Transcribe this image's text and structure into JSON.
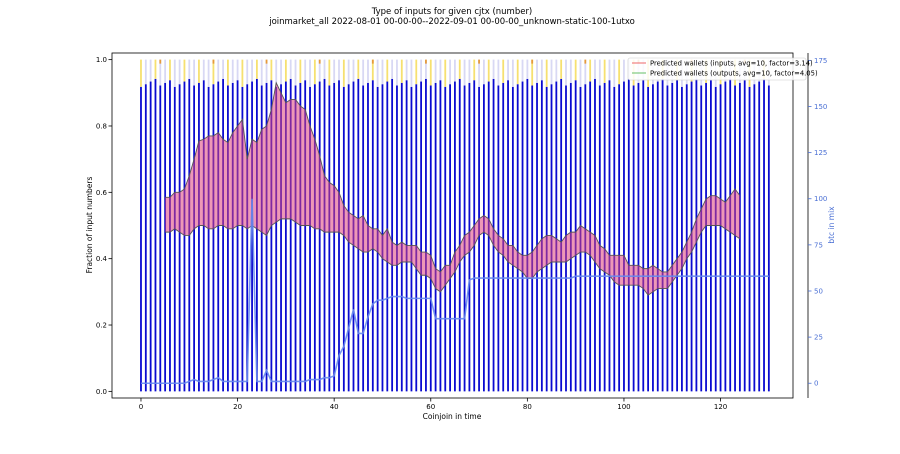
{
  "chart_data": {
    "type": "bar",
    "title": "Type of inputs for given cjtx (number)",
    "subtitle": "joinmarket_all 2022-08-01 00-00-00--2022-09-01 00-00-00_unknown-static-100-1utxo",
    "xlabel": "Coinjoin in time",
    "ylabel": "Fraction of input numbers",
    "y2label": "btc in mix",
    "xlim": [
      -6,
      135
    ],
    "ylim": [
      -0.02,
      1.02
    ],
    "y2lim": [
      -8,
      179
    ],
    "xticks": [
      0,
      20,
      40,
      60,
      80,
      100,
      120
    ],
    "xtick_labels": [
      "0",
      "20",
      "40",
      "60",
      "80",
      "100",
      "120"
    ],
    "yticks": [
      0.0,
      0.2,
      0.4,
      0.6,
      0.8,
      1.0
    ],
    "ytick_labels": [
      "0.0",
      "0.2",
      "0.4",
      "0.6",
      "0.8",
      "1.0"
    ],
    "y2ticks": [
      0,
      25,
      50,
      75,
      100,
      125,
      150,
      175
    ],
    "y2tick_labels": [
      "0",
      "25",
      "50",
      "75",
      "100",
      "125",
      "150",
      "175"
    ],
    "grid": false,
    "legend_position": "top-right",
    "colors": {
      "bars_main": "#0a0ad0",
      "bars_light": "#d8d8f4",
      "bars_yellow": "#f6e070",
      "bars_orange": "#e59a3c",
      "pred_inputs": "#f08080",
      "pred_outputs": "#7fc97f",
      "band_fill": "#e0447a",
      "band_edge": "#555555",
      "btc_line": "#6688ee",
      "axis2_tick": "#4a6fd4"
    },
    "series": [
      {
        "name": "Predicted wallets (inputs, avg=10, factor=3.14)",
        "kind": "line-upper",
        "x": [
          5,
          6,
          7,
          8,
          9,
          10,
          11,
          12,
          13,
          14,
          15,
          16,
          17,
          18,
          19,
          20,
          21,
          22,
          23,
          24,
          25,
          26,
          27,
          28,
          29,
          30,
          31,
          32,
          33,
          34,
          35,
          36,
          37,
          38,
          39,
          40,
          41,
          42,
          43,
          44,
          45,
          46,
          47,
          48,
          49,
          50,
          51,
          52,
          53,
          54,
          55,
          56,
          57,
          58,
          59,
          60,
          61,
          62,
          63,
          64,
          65,
          66,
          67,
          68,
          69,
          70,
          71,
          72,
          73,
          74,
          75,
          76,
          77,
          78,
          79,
          80,
          81,
          82,
          83,
          84,
          85,
          86,
          87,
          88,
          89,
          90,
          91,
          92,
          93,
          94,
          95,
          96,
          97,
          98,
          99,
          100,
          101,
          102,
          103,
          104,
          105,
          106,
          107,
          108,
          109,
          110,
          111,
          112,
          113,
          114,
          115,
          116,
          117,
          118,
          119,
          120,
          121,
          122,
          123,
          124
        ],
        "values": [
          0.585,
          0.585,
          0.6,
          0.6,
          0.61,
          0.65,
          0.7,
          0.755,
          0.76,
          0.77,
          0.77,
          0.78,
          0.76,
          0.75,
          0.78,
          0.8,
          0.82,
          0.7,
          0.76,
          0.75,
          0.79,
          0.8,
          0.85,
          0.93,
          0.9,
          0.87,
          0.88,
          0.88,
          0.86,
          0.85,
          0.8,
          0.76,
          0.71,
          0.65,
          0.63,
          0.62,
          0.6,
          0.56,
          0.54,
          0.53,
          0.52,
          0.53,
          0.5,
          0.49,
          0.49,
          0.47,
          0.49,
          0.45,
          0.44,
          0.45,
          0.44,
          0.44,
          0.44,
          0.42,
          0.42,
          0.41,
          0.37,
          0.36,
          0.38,
          0.38,
          0.42,
          0.44,
          0.47,
          0.48,
          0.5,
          0.52,
          0.53,
          0.52,
          0.49,
          0.47,
          0.46,
          0.44,
          0.44,
          0.42,
          0.41,
          0.41,
          0.42,
          0.44,
          0.46,
          0.47,
          0.47,
          0.46,
          0.45,
          0.47,
          0.48,
          0.48,
          0.5,
          0.49,
          0.48,
          0.47,
          0.44,
          0.43,
          0.41,
          0.41,
          0.41,
          0.41,
          0.38,
          0.38,
          0.38,
          0.37,
          0.37,
          0.38,
          0.37,
          0.36,
          0.36,
          0.38,
          0.4,
          0.42,
          0.45,
          0.48,
          0.52,
          0.55,
          0.58,
          0.59,
          0.59,
          0.58,
          0.57,
          0.59,
          0.61,
          0.59
        ]
      },
      {
        "name": "Predicted wallets (outputs, avg=10, factor=4.05)",
        "kind": "line-lower",
        "x": [
          5,
          6,
          7,
          8,
          9,
          10,
          11,
          12,
          13,
          14,
          15,
          16,
          17,
          18,
          19,
          20,
          21,
          22,
          23,
          24,
          25,
          26,
          27,
          28,
          29,
          30,
          31,
          32,
          33,
          34,
          35,
          36,
          37,
          38,
          39,
          40,
          41,
          42,
          43,
          44,
          45,
          46,
          47,
          48,
          49,
          50,
          51,
          52,
          53,
          54,
          55,
          56,
          57,
          58,
          59,
          60,
          61,
          62,
          63,
          64,
          65,
          66,
          67,
          68,
          69,
          70,
          71,
          72,
          73,
          74,
          75,
          76,
          77,
          78,
          79,
          80,
          81,
          82,
          83,
          84,
          85,
          86,
          87,
          88,
          89,
          90,
          91,
          92,
          93,
          94,
          95,
          96,
          97,
          98,
          99,
          100,
          101,
          102,
          103,
          104,
          105,
          106,
          107,
          108,
          109,
          110,
          111,
          112,
          113,
          114,
          115,
          116,
          117,
          118,
          119,
          120,
          121,
          122,
          123,
          124
        ],
        "values": [
          0.48,
          0.48,
          0.49,
          0.48,
          0.47,
          0.47,
          0.49,
          0.5,
          0.5,
          0.49,
          0.49,
          0.5,
          0.5,
          0.49,
          0.49,
          0.5,
          0.5,
          0.49,
          0.5,
          0.49,
          0.48,
          0.47,
          0.5,
          0.51,
          0.52,
          0.52,
          0.52,
          0.51,
          0.5,
          0.5,
          0.5,
          0.49,
          0.49,
          0.48,
          0.48,
          0.48,
          0.48,
          0.47,
          0.45,
          0.44,
          0.43,
          0.42,
          0.42,
          0.43,
          0.42,
          0.4,
          0.39,
          0.38,
          0.38,
          0.39,
          0.39,
          0.39,
          0.37,
          0.35,
          0.35,
          0.34,
          0.31,
          0.3,
          0.32,
          0.34,
          0.36,
          0.39,
          0.41,
          0.42,
          0.44,
          0.47,
          0.48,
          0.47,
          0.44,
          0.42,
          0.41,
          0.39,
          0.38,
          0.37,
          0.36,
          0.34,
          0.34,
          0.36,
          0.37,
          0.38,
          0.39,
          0.39,
          0.39,
          0.39,
          0.4,
          0.41,
          0.42,
          0.42,
          0.41,
          0.39,
          0.37,
          0.36,
          0.35,
          0.33,
          0.32,
          0.32,
          0.32,
          0.32,
          0.32,
          0.31,
          0.29,
          0.3,
          0.31,
          0.31,
          0.31,
          0.33,
          0.35,
          0.37,
          0.4,
          0.42,
          0.45,
          0.48,
          0.5,
          0.5,
          0.5,
          0.5,
          0.49,
          0.48,
          0.47,
          0.46
        ]
      },
      {
        "name": "btc in mix",
        "kind": "line-secondary-axis",
        "x": [
          0,
          1,
          2,
          3,
          4,
          5,
          6,
          7,
          8,
          9,
          10,
          11,
          12,
          13,
          14,
          15,
          16,
          17,
          18,
          19,
          20,
          21,
          22,
          23,
          24,
          25,
          26,
          27,
          28,
          29,
          30,
          31,
          32,
          33,
          34,
          35,
          36,
          37,
          38,
          39,
          40,
          41,
          42,
          43,
          44,
          45,
          46,
          47,
          48,
          49,
          50,
          51,
          52,
          53,
          54,
          55,
          56,
          57,
          58,
          59,
          60,
          61,
          62,
          63,
          64,
          65,
          66,
          67,
          68,
          69,
          70,
          71,
          72,
          73,
          74,
          75,
          76,
          77,
          78,
          79,
          80,
          81,
          82,
          83,
          84,
          85,
          86,
          87,
          88,
          89,
          90,
          91,
          92,
          93,
          94,
          95,
          96,
          97,
          98,
          99,
          100,
          101,
          102,
          103,
          104,
          105,
          106,
          107,
          108,
          109,
          110,
          111,
          112,
          113,
          114,
          115,
          116,
          117,
          118,
          119,
          120,
          121,
          122,
          123,
          124,
          125,
          126,
          127,
          128,
          129,
          130
        ],
        "values": [
          0,
          0,
          0,
          0,
          0,
          0,
          0,
          0,
          0,
          0,
          1,
          2,
          1,
          1,
          1,
          2,
          3,
          1,
          1,
          1,
          1,
          1,
          1,
          100,
          1,
          1,
          7,
          1,
          1,
          1,
          1,
          1,
          1,
          1,
          1,
          2,
          2,
          2,
          3,
          3,
          4,
          15,
          20,
          30,
          40,
          27,
          27,
          36,
          43,
          45,
          45,
          46,
          47,
          47,
          47,
          46,
          46,
          46,
          46,
          46,
          46,
          35,
          35,
          35,
          35,
          35,
          35,
          35,
          56,
          57,
          57,
          57,
          57,
          57,
          57,
          57,
          57,
          57,
          57,
          57,
          57,
          57,
          57,
          57,
          57,
          57,
          57,
          57,
          57,
          57,
          58,
          58,
          58,
          58,
          58,
          58,
          58,
          58,
          58,
          58,
          58,
          58,
          58,
          58,
          58,
          58,
          58,
          58,
          58,
          58,
          58,
          58,
          58,
          58,
          58,
          58,
          58,
          58,
          58,
          58,
          58,
          58,
          58,
          58,
          58,
          58,
          58,
          58,
          58,
          58,
          58
        ],
        "note_values": "btc in mix (secondary axis)"
      }
    ],
    "bars": {
      "x_start": 0,
      "x_end": 130,
      "main_fraction_typical": 0.93
    }
  }
}
